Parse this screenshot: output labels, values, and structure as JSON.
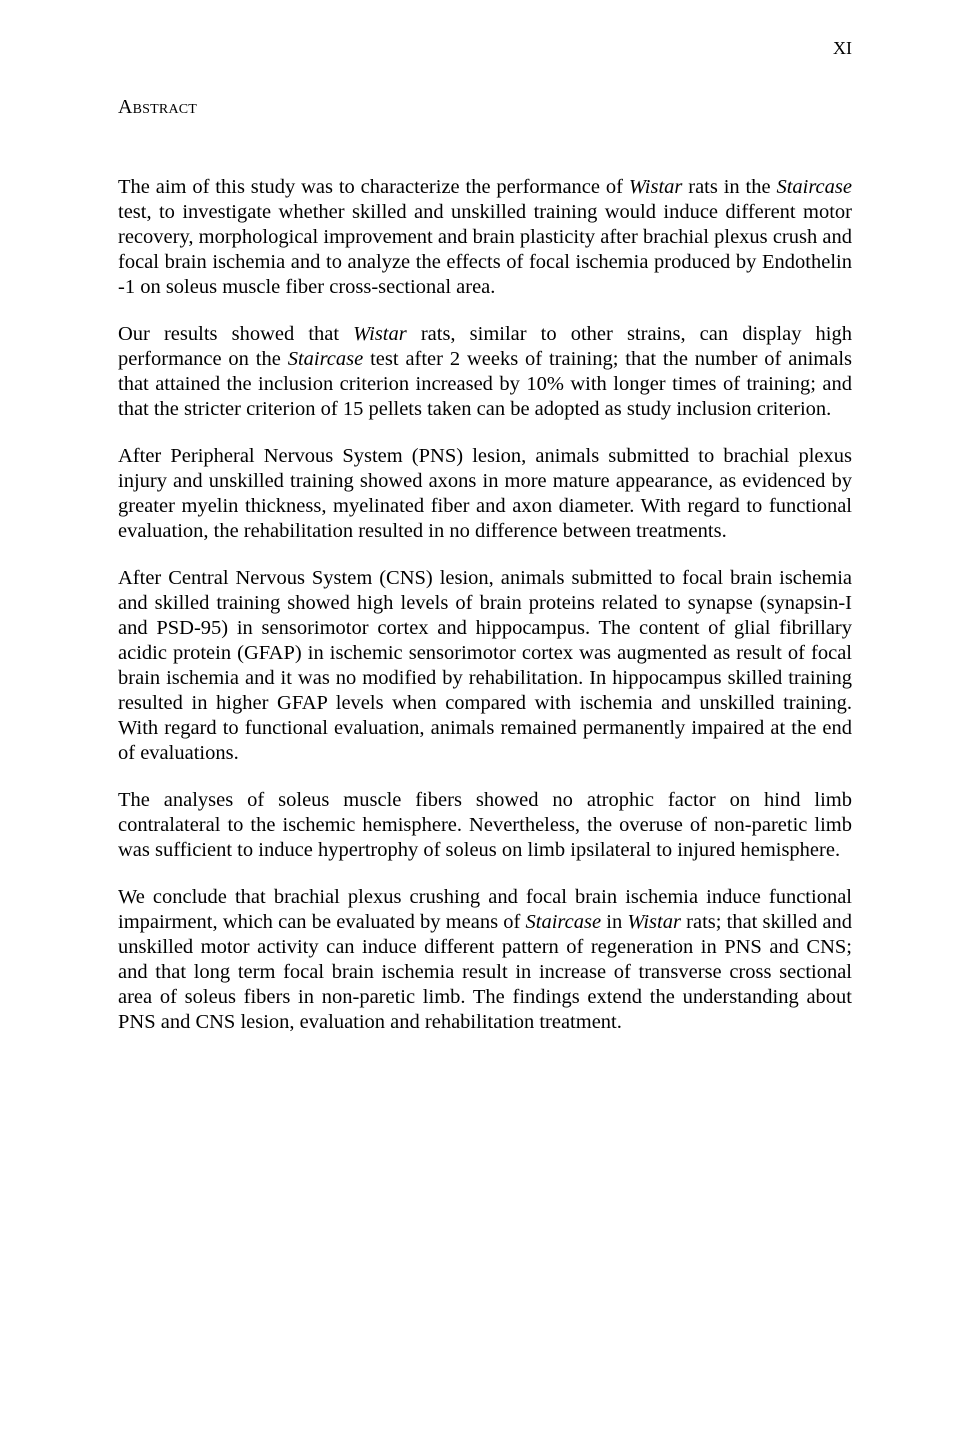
{
  "page_number": "XI",
  "heading": "Abstract",
  "paragraphs": {
    "p1": "The aim of this study was to characterize the performance of Wistar rats in the Staircase test, to investigate whether skilled and unskilled training would induce different motor recovery, morphological improvement and brain plasticity after brachial plexus crush and focal brain ischemia and to analyze the effects of focal ischemia produced by Endothelin -1 on soleus muscle fiber cross-sectional area.",
    "p2": "Our results showed that Wistar rats, similar to other strains, can display high performance on the Staircase test after 2 weeks of training; that the number of animals that attained the inclusion criterion increased by 10% with longer times of training; and that the stricter criterion of 15 pellets taken can be adopted as study inclusion criterion.",
    "p3": "After Peripheral Nervous System (PNS) lesion, animals submitted to brachial plexus injury and unskilled training showed axons in more mature appearance, as evidenced by greater myelin thickness, myelinated fiber and axon diameter. With regard to functional evaluation, the rehabilitation resulted in no difference between treatments.",
    "p4": "After Central Nervous System (CNS) lesion, animals submitted to focal brain ischemia and skilled training showed high levels of brain proteins related to synapse (synapsin-I and PSD-95) in sensorimotor cortex and hippocampus. The content of glial fibrillary acidic protein (GFAP) in ischemic sensorimotor cortex was augmented as result of focal brain ischemia and it was no modified by rehabilitation. In hippocampus skilled training resulted in higher GFAP levels when compared with ischemia and unskilled training. With regard to functional evaluation, animals remained permanently impaired at the end of evaluations.",
    "p5": "The analyses of soleus muscle fibers showed no atrophic factor on hind limb contralateral to the ischemic hemisphere. Nevertheless, the overuse of non-paretic limb was sufficient to induce hypertrophy of soleus on limb ipsilateral to injured hemisphere.",
    "p6": "We conclude that brachial plexus crushing and focal brain ischemia induce functional impairment, which can be evaluated by means of Staircase in Wistar rats; that skilled and unskilled motor activity can induce different pattern of regeneration in PNS and CNS; and that long term focal brain ischemia result in increase of transverse cross sectional area of soleus fibers in non-paretic limb. The findings extend the understanding about PNS and CNS lesion, evaluation and rehabilitation treatment."
  },
  "italics": {
    "wistar": "Wistar",
    "staircase": "Staircase"
  }
}
